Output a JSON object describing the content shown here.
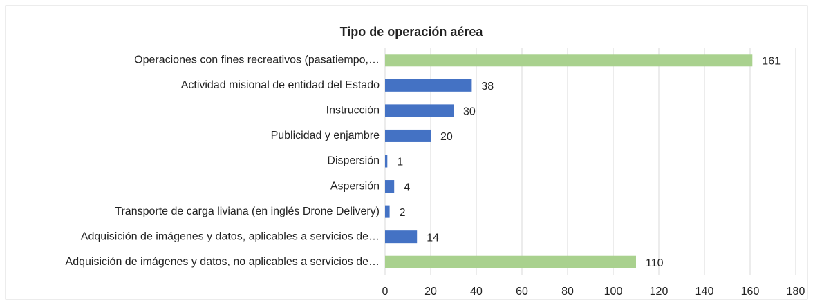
{
  "chart_data": {
    "type": "bar",
    "orientation": "horizontal",
    "title": "Tipo de operación aérea",
    "categories": [
      "Operaciones con fines recreativos (pasatiempo,…",
      "Actividad misional de entidad del Estado",
      "Instrucción",
      "Publicidad y enjambre",
      "Dispersión",
      "Aspersión",
      "Transporte de carga liviana (en inglés Drone Delivery)",
      "Adquisición de imágenes y datos, aplicables a servicios de…",
      "Adquisición de imágenes y datos, no aplicables a servicios de…"
    ],
    "values": [
      161,
      38,
      30,
      20,
      1,
      4,
      2,
      14,
      110
    ],
    "colors": [
      "#a9d18e",
      "#4472c4",
      "#4472c4",
      "#4472c4",
      "#4472c4",
      "#4472c4",
      "#4472c4",
      "#4472c4",
      "#a9d18e"
    ],
    "xlim": [
      0,
      180
    ],
    "xticks": [
      0,
      20,
      40,
      60,
      80,
      100,
      120,
      140,
      160,
      180
    ],
    "grid": true
  }
}
